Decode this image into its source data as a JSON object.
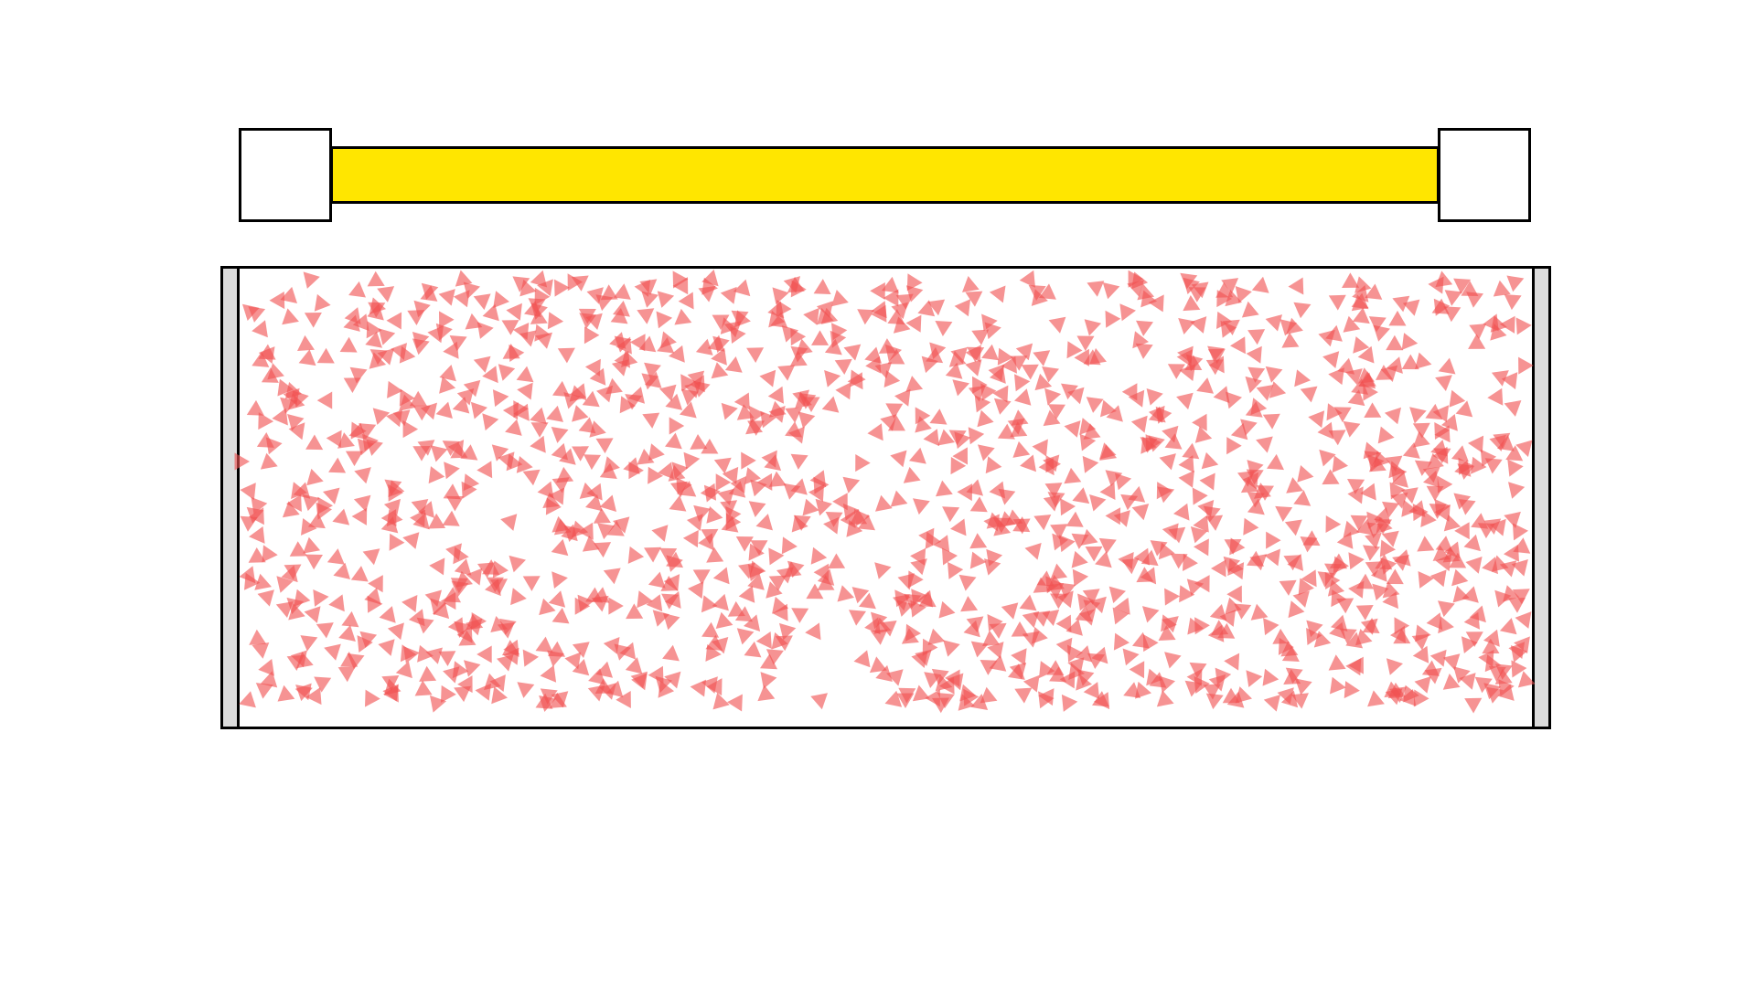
{
  "colors": {
    "background": "#ffffff",
    "outline": "#000000",
    "end_block": "#ffffff",
    "energy_bar": "#ffe600",
    "wall": "#dcdcdc",
    "particle": "#f05050"
  },
  "energy_bar": {
    "fill_fraction": 1.0
  },
  "particles": {
    "shape": "triangle",
    "opacity": 0.62
  }
}
